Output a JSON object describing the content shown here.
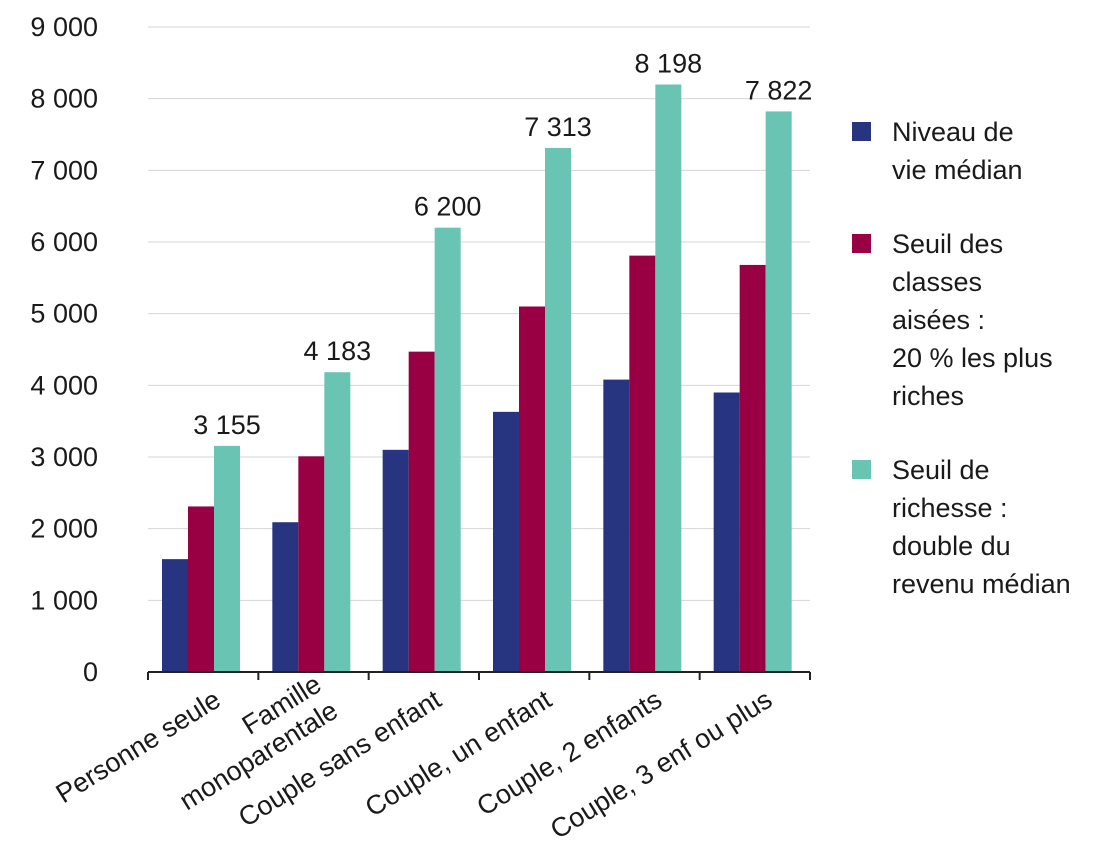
{
  "chart_data": {
    "type": "bar",
    "categories": [
      "Personne seule",
      "Famille\nmonoparentale",
      "Couple sans enfant",
      "Couple, un enfant",
      "Couple, 2 enfants",
      "Couple, 3 enf ou plus"
    ],
    "series": [
      {
        "name": "Niveau de\nvie médian",
        "color": "#27347f",
        "values": [
          1575,
          2090,
          3100,
          3630,
          4080,
          3900
        ]
      },
      {
        "name": "Seuil des\nclasses\naisées :\n20 % les plus\nriches",
        "color": "#990044",
        "values": [
          2310,
          3010,
          4470,
          5100,
          5810,
          5680
        ]
      },
      {
        "name": "Seuil de\nrichesse :\ndouble du\nrevenu médian",
        "color": "#6ac4b4",
        "values": [
          3155,
          4183,
          6200,
          7313,
          8198,
          7822
        ]
      }
    ],
    "data_labels": [
      "3 155",
      "4 183",
      "6 200",
      "7 313",
      "8 198",
      "7 822"
    ],
    "y_ticks": [
      "0",
      "1 000",
      "2 000",
      "3 000",
      "4 000",
      "5 000",
      "6 000",
      "7 000",
      "8 000",
      "9 000"
    ],
    "ylim": [
      0,
      9000
    ],
    "grid": true,
    "legend_position": "right",
    "title": "",
    "xlabel": "",
    "ylabel": ""
  }
}
